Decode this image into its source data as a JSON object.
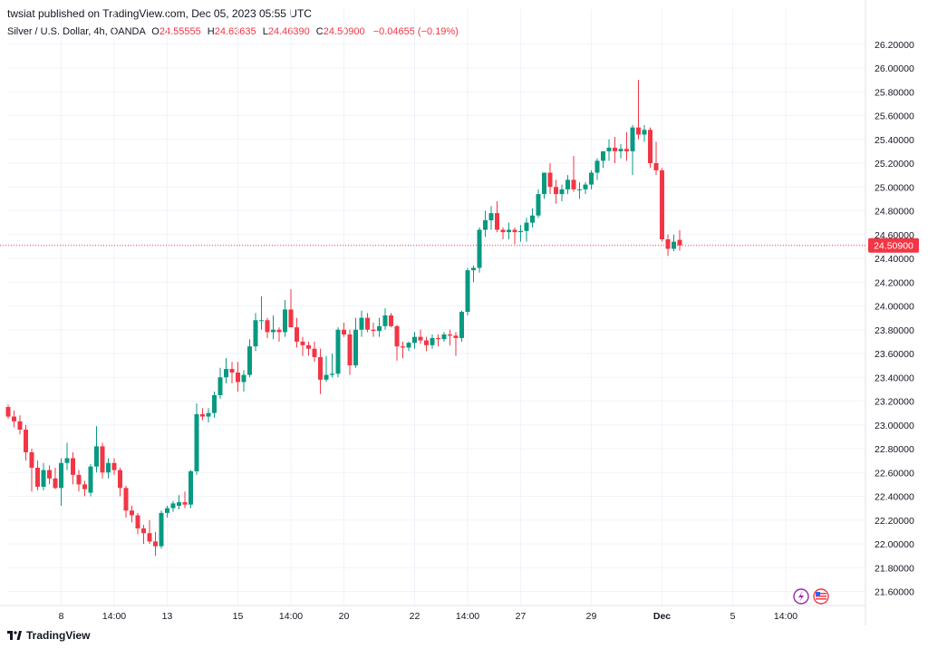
{
  "header": {
    "published": "twsiat published on TradingView.com, Dec 05, 2023 05:55 UTC"
  },
  "legend": {
    "symbol": "Silver / U.S. Dollar, 4h, OANDA",
    "o_label": "O",
    "o_value": "24.55555",
    "h_label": "H",
    "h_value": "24.63635",
    "l_label": "L",
    "l_value": "24.46390",
    "c_label": "C",
    "c_value": "24.50900",
    "change": "−0.04655 (−0.19%)"
  },
  "footer": {
    "brand": "TradingView"
  },
  "colors": {
    "up": "#089981",
    "down": "#f23645",
    "grid": "#f0f3fa",
    "price_line": "#f23645"
  },
  "icons": [
    "lightning-icon",
    "us-flag-icon"
  ],
  "chart_data": {
    "type": "candlestick",
    "ylim": [
      21.5,
      26.3
    ],
    "yticks": [
      "26.20000",
      "26.00000",
      "25.80000",
      "25.60000",
      "25.40000",
      "25.20000",
      "25.00000",
      "24.80000",
      "24.60000",
      "24.40000",
      "24.20000",
      "24.00000",
      "23.80000",
      "23.60000",
      "23.40000",
      "23.20000",
      "23.00000",
      "22.80000",
      "22.60000",
      "22.40000",
      "22.20000",
      "22.00000",
      "21.80000",
      "21.60000"
    ],
    "xticks": [
      {
        "label": "8",
        "bar": 9
      },
      {
        "label": "14:00",
        "bar": 18
      },
      {
        "label": "13",
        "bar": 27
      },
      {
        "label": "15",
        "bar": 39
      },
      {
        "label": "14:00",
        "bar": 48
      },
      {
        "label": "20",
        "bar": 57
      },
      {
        "label": "22",
        "bar": 69
      },
      {
        "label": "14:00",
        "bar": 78
      },
      {
        "label": "27",
        "bar": 87
      },
      {
        "label": "29",
        "bar": 99
      },
      {
        "label": "Dec",
        "bar": 111
      },
      {
        "label": "5",
        "bar": 123
      },
      {
        "label": "14:00",
        "bar": 132
      }
    ],
    "last_price": "24.50900",
    "candles": [
      [
        23.15,
        23.17,
        23.05,
        23.07
      ],
      [
        23.07,
        23.12,
        22.98,
        23.03
      ],
      [
        23.03,
        23.08,
        22.92,
        22.96
      ],
      [
        22.96,
        23.0,
        22.7,
        22.77
      ],
      [
        22.77,
        22.8,
        22.44,
        22.64
      ],
      [
        22.64,
        22.7,
        22.45,
        22.48
      ],
      [
        22.48,
        22.68,
        22.45,
        22.62
      ],
      [
        22.62,
        22.66,
        22.5,
        22.55
      ],
      [
        22.55,
        22.64,
        22.46,
        22.47
      ],
      [
        22.47,
        22.72,
        22.32,
        22.68
      ],
      [
        22.68,
        22.85,
        22.62,
        22.72
      ],
      [
        22.72,
        22.77,
        22.5,
        22.58
      ],
      [
        22.58,
        22.62,
        22.44,
        22.5
      ],
      [
        22.5,
        22.53,
        22.4,
        22.46
      ],
      [
        22.43,
        22.67,
        22.4,
        22.65
      ],
      [
        22.65,
        22.99,
        22.6,
        22.82
      ],
      [
        22.82,
        22.85,
        22.55,
        22.6
      ],
      [
        22.6,
        22.72,
        22.55,
        22.68
      ],
      [
        22.68,
        22.72,
        22.58,
        22.62
      ],
      [
        22.62,
        22.64,
        22.4,
        22.47
      ],
      [
        22.47,
        22.49,
        22.22,
        22.28
      ],
      [
        22.28,
        22.32,
        22.18,
        22.24
      ],
      [
        22.24,
        22.26,
        22.08,
        22.13
      ],
      [
        22.13,
        22.16,
        22.0,
        22.09
      ],
      [
        22.09,
        22.2,
        22.0,
        22.02
      ],
      [
        22.02,
        22.1,
        21.9,
        21.98
      ],
      [
        21.98,
        22.28,
        21.96,
        22.26
      ],
      [
        22.26,
        22.32,
        22.22,
        22.3
      ],
      [
        22.3,
        22.36,
        22.27,
        22.34
      ],
      [
        22.32,
        22.41,
        22.29,
        22.35
      ],
      [
        22.35,
        22.44,
        22.3,
        22.33
      ],
      [
        22.33,
        22.62,
        22.3,
        22.61
      ],
      [
        22.61,
        23.18,
        22.58,
        23.09
      ],
      [
        23.09,
        23.14,
        23.04,
        23.07
      ],
      [
        23.07,
        23.14,
        23.02,
        23.1
      ],
      [
        23.1,
        23.28,
        23.06,
        23.25
      ],
      [
        23.25,
        23.48,
        23.22,
        23.4
      ],
      [
        23.4,
        23.56,
        23.35,
        23.47
      ],
      [
        23.47,
        23.53,
        23.35,
        23.44
      ],
      [
        23.44,
        23.53,
        23.28,
        23.36
      ],
      [
        23.36,
        23.46,
        23.28,
        23.42
      ],
      [
        23.42,
        23.72,
        23.4,
        23.66
      ],
      [
        23.66,
        23.94,
        23.62,
        23.88
      ],
      [
        23.88,
        24.08,
        23.8,
        23.88
      ],
      [
        23.88,
        23.9,
        23.73,
        23.78
      ],
      [
        23.78,
        23.92,
        23.72,
        23.8
      ],
      [
        23.8,
        23.82,
        23.7,
        23.78
      ],
      [
        23.78,
        24.05,
        23.74,
        23.97
      ],
      [
        23.97,
        24.14,
        23.85,
        23.82
      ],
      [
        23.82,
        23.9,
        23.65,
        23.7
      ],
      [
        23.7,
        23.74,
        23.58,
        23.67
      ],
      [
        23.67,
        23.7,
        23.58,
        23.64
      ],
      [
        23.64,
        23.7,
        23.53,
        23.57
      ],
      [
        23.57,
        23.64,
        23.26,
        23.38
      ],
      [
        23.38,
        23.58,
        23.36,
        23.42
      ],
      [
        23.42,
        23.6,
        23.4,
        23.43
      ],
      [
        23.43,
        23.82,
        23.4,
        23.8
      ],
      [
        23.8,
        23.86,
        23.74,
        23.76
      ],
      [
        23.76,
        23.8,
        23.42,
        23.5
      ],
      [
        23.5,
        23.9,
        23.48,
        23.8
      ],
      [
        23.8,
        23.96,
        23.74,
        23.9
      ],
      [
        23.9,
        23.94,
        23.78,
        23.8
      ],
      [
        23.8,
        23.86,
        23.74,
        23.79
      ],
      [
        23.79,
        23.9,
        23.74,
        23.83
      ],
      [
        23.83,
        23.98,
        23.8,
        23.92
      ],
      [
        23.92,
        23.94,
        23.82,
        23.83
      ],
      [
        23.83,
        23.84,
        23.54,
        23.66
      ],
      [
        23.66,
        23.7,
        23.56,
        23.65
      ],
      [
        23.65,
        23.7,
        23.62,
        23.69
      ],
      [
        23.69,
        23.78,
        23.64,
        23.74
      ],
      [
        23.74,
        23.8,
        23.68,
        23.71
      ],
      [
        23.71,
        23.74,
        23.62,
        23.67
      ],
      [
        23.67,
        23.76,
        23.64,
        23.73
      ],
      [
        23.73,
        23.76,
        23.66,
        23.72
      ],
      [
        23.72,
        23.78,
        23.7,
        23.76
      ],
      [
        23.76,
        23.8,
        23.67,
        23.75
      ],
      [
        23.75,
        23.78,
        23.58,
        23.73
      ],
      [
        23.73,
        23.96,
        23.7,
        23.95
      ],
      [
        23.95,
        24.32,
        23.92,
        24.3
      ],
      [
        24.3,
        24.34,
        24.2,
        24.32
      ],
      [
        24.32,
        24.66,
        24.28,
        24.64
      ],
      [
        24.64,
        24.8,
        24.58,
        24.72
      ],
      [
        24.72,
        24.84,
        24.64,
        24.78
      ],
      [
        24.78,
        24.88,
        24.62,
        24.64
      ],
      [
        24.64,
        24.66,
        24.56,
        24.62
      ],
      [
        24.62,
        24.7,
        24.56,
        24.64
      ],
      [
        24.64,
        24.66,
        24.52,
        24.62
      ],
      [
        24.62,
        24.68,
        24.54,
        24.63
      ],
      [
        24.63,
        24.74,
        24.54,
        24.7
      ],
      [
        24.7,
        24.82,
        24.66,
        24.76
      ],
      [
        24.76,
        24.98,
        24.74,
        24.94
      ],
      [
        24.94,
        25.1,
        24.9,
        25.12
      ],
      [
        25.12,
        25.2,
        24.94,
        25.0
      ],
      [
        25.0,
        25.06,
        24.86,
        24.94
      ],
      [
        24.94,
        25.02,
        24.88,
        24.98
      ],
      [
        24.98,
        25.1,
        24.94,
        25.06
      ],
      [
        25.06,
        25.26,
        24.96,
        24.98
      ],
      [
        24.98,
        25.04,
        24.9,
        24.98
      ],
      [
        24.98,
        25.04,
        24.94,
        25.02
      ],
      [
        25.02,
        25.14,
        24.98,
        25.12
      ],
      [
        25.12,
        25.24,
        25.06,
        25.22
      ],
      [
        25.22,
        25.3,
        25.16,
        25.3
      ],
      [
        25.3,
        25.4,
        25.22,
        25.33
      ],
      [
        25.33,
        25.42,
        25.2,
        25.3
      ],
      [
        25.3,
        25.36,
        25.24,
        25.32
      ],
      [
        25.32,
        25.46,
        25.22,
        25.3
      ],
      [
        25.3,
        25.52,
        25.1,
        25.5
      ],
      [
        25.5,
        25.9,
        25.4,
        25.44
      ],
      [
        25.44,
        25.52,
        25.38,
        25.48
      ],
      [
        25.48,
        25.5,
        25.16,
        25.2
      ],
      [
        25.2,
        25.38,
        25.1,
        25.14
      ],
      [
        25.14,
        25.16,
        24.54,
        24.56
      ],
      [
        24.56,
        24.6,
        24.42,
        24.48
      ],
      [
        24.48,
        24.6,
        24.46,
        24.54
      ],
      [
        24.55555,
        24.63635,
        24.4639,
        24.509
      ]
    ]
  }
}
